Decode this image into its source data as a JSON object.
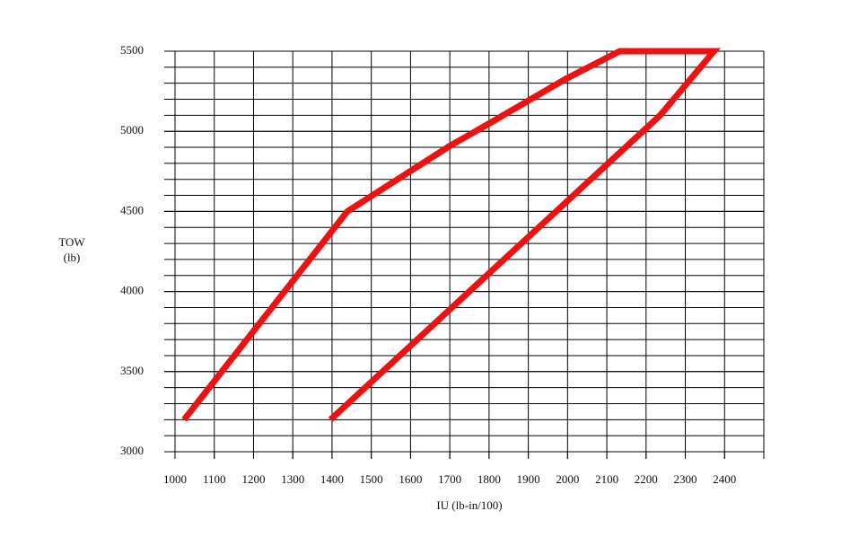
{
  "chart_data": {
    "type": "line",
    "xlabel": "IU (lb-in/100)",
    "ylabel": [
      "TOW",
      "(lb)"
    ],
    "x": [
      1023,
      1439,
      1698,
      1801,
      1995,
      2133,
      2373,
      2236,
      1396
    ],
    "series": [
      {
        "color": "#ee1111",
        "values": [
          3200,
          4500,
          4906,
          5050,
          5326,
          5500,
          5500,
          5100,
          3200
        ]
      }
    ],
    "xlim": [
      1000,
      2500
    ],
    "ylim": [
      3000,
      5500
    ],
    "xticks": [
      1000,
      1100,
      1200,
      1300,
      1400,
      1500,
      1600,
      1700,
      1800,
      1900,
      2000,
      2100,
      2200,
      2300,
      2400
    ],
    "yticks": [
      3000,
      3500,
      4000,
      4500,
      5000,
      5500
    ],
    "xgrid_step": 100,
    "ygrid_step": 100,
    "grid": true
  }
}
